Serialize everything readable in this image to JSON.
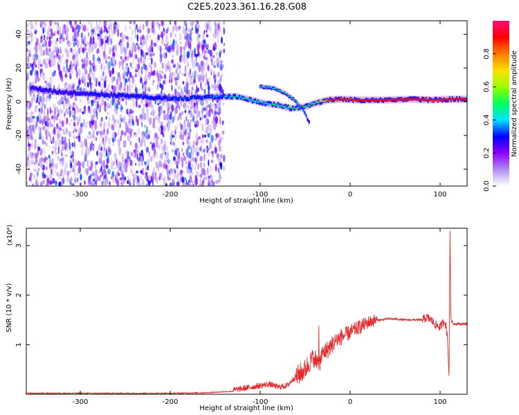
{
  "title": "C2E5.2023.361.16.28.G08",
  "chart_data": [
    {
      "type": "heatmap",
      "xlabel": "Height of straight line (km)",
      "ylabel": "Frequency (Hz)",
      "xlim": [
        -360,
        130
      ],
      "ylim": [
        -50,
        48
      ],
      "x_ticks": [
        -300,
        -200,
        -100,
        0,
        100
      ],
      "y_ticks": [
        -40,
        -20,
        0,
        20,
        40
      ],
      "colorbar": {
        "label": "Normalized spectral amplitude",
        "range": [
          0,
          1
        ],
        "ticks": [
          "0.0",
          "0.2",
          "0.4",
          "0.6",
          "0.8"
        ],
        "tick_values": [
          0,
          0.2,
          0.4,
          0.6,
          0.8
        ],
        "colors": [
          "#ffffff",
          "#b08cf0",
          "#8a00ff",
          "#0000ff",
          "#00e5ff",
          "#00ff5a",
          "#9aff00",
          "#ffe000",
          "#ff7a00",
          "#ff0000",
          "#ff0a78"
        ]
      },
      "noise_region": {
        "x_range": [
          -360,
          -140
        ],
        "freq_range": [
          -50,
          48
        ]
      },
      "main_ridge": [
        {
          "x": -355,
          "freq": 8,
          "amp": 0.25
        },
        {
          "x": -330,
          "freq": 6,
          "amp": 0.25
        },
        {
          "x": -300,
          "freq": 5,
          "amp": 0.25
        },
        {
          "x": -270,
          "freq": 4,
          "amp": 0.3
        },
        {
          "x": -240,
          "freq": 3.5,
          "amp": 0.3
        },
        {
          "x": -210,
          "freq": 2,
          "amp": 0.3
        },
        {
          "x": -180,
          "freq": 2,
          "amp": 0.35
        },
        {
          "x": -150,
          "freq": 3,
          "amp": 0.35
        },
        {
          "x": -125,
          "freq": 3,
          "amp": 0.45
        },
        {
          "x": -110,
          "freq": 1,
          "amp": 0.5
        },
        {
          "x": -95,
          "freq": -1,
          "amp": 0.5
        },
        {
          "x": -80,
          "freq": -2,
          "amp": 0.55
        },
        {
          "x": -65,
          "freq": -4,
          "amp": 0.55
        },
        {
          "x": -50,
          "freq": -3,
          "amp": 0.5
        },
        {
          "x": -40,
          "freq": -1,
          "amp": 0.6
        },
        {
          "x": -25,
          "freq": 1,
          "amp": 0.7
        },
        {
          "x": -10,
          "freq": 1.5,
          "amp": 0.8
        },
        {
          "x": 10,
          "freq": 1,
          "amp": 0.9
        },
        {
          "x": 40,
          "freq": 1,
          "amp": 0.95
        },
        {
          "x": 70,
          "freq": 1.5,
          "amp": 0.95
        },
        {
          "x": 90,
          "freq": 1,
          "amp": 0.9
        },
        {
          "x": 110,
          "freq": 1.5,
          "amp": 0.9
        },
        {
          "x": 130,
          "freq": 1.5,
          "amp": 0.9
        }
      ],
      "branch_ridge": [
        {
          "x": -100,
          "freq": 9,
          "amp": 0.4
        },
        {
          "x": -85,
          "freq": 8,
          "amp": 0.5
        },
        {
          "x": -72,
          "freq": 5,
          "amp": 0.55
        },
        {
          "x": -62,
          "freq": 1,
          "amp": 0.55
        },
        {
          "x": -52,
          "freq": -5,
          "amp": 0.45
        },
        {
          "x": -45,
          "freq": -13,
          "amp": 0.3
        }
      ]
    },
    {
      "type": "line",
      "xlabel": "Height of straight line (km)",
      "ylabel": "SNR (10 * v/v)",
      "y_multiplier": "(x10⁴)",
      "xlim": [
        -360,
        130
      ],
      "ylim": [
        0,
        3.35
      ],
      "x_ticks": [
        -300,
        -200,
        -100,
        0,
        100
      ],
      "y_ticks": [
        1,
        2,
        3
      ],
      "series": [
        {
          "color": "#e8272a",
          "x": [
            -360,
            -300,
            -240,
            -200,
            -160,
            -130,
            -110,
            -100,
            -90,
            -80,
            -70,
            -60,
            -50,
            -45,
            -40,
            -35,
            -30,
            -25,
            -20,
            -15,
            -10,
            -5,
            0,
            5,
            10,
            15,
            20,
            25,
            30,
            35,
            40,
            50,
            60,
            70,
            80,
            85,
            90,
            95,
            100,
            105,
            108,
            110,
            111,
            112,
            115,
            120,
            130
          ],
          "y": [
            0.02,
            0.02,
            0.02,
            0.02,
            0.03,
            0.06,
            0.12,
            0.15,
            0.18,
            0.12,
            0.15,
            0.35,
            0.5,
            0.65,
            0.75,
            0.6,
            0.85,
            0.9,
            1.0,
            1.1,
            1.15,
            1.2,
            1.25,
            1.3,
            1.35,
            1.4,
            1.45,
            1.48,
            1.5,
            1.5,
            1.52,
            1.52,
            1.5,
            1.5,
            1.5,
            1.55,
            1.5,
            1.4,
            1.35,
            1.5,
            1.2,
            0.3,
            3.3,
            1.5,
            1.42,
            1.42,
            1.42
          ]
        }
      ]
    }
  ]
}
